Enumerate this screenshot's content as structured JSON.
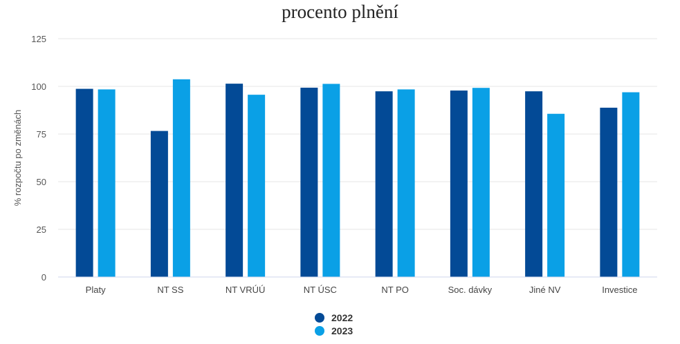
{
  "chart_data": {
    "type": "bar",
    "title": "procento plnění",
    "xlabel": "",
    "ylabel": "% rozpočtu po změnách",
    "ylim": [
      0,
      125
    ],
    "yticks": [
      0,
      25,
      50,
      75,
      100,
      125
    ],
    "grid": true,
    "legend_position": "bottom",
    "categories": [
      "Platy",
      "NT SS",
      "NT VRÚÚ",
      "NT ÚSC",
      "NT PO",
      "Soc. dávky",
      "Jiné NV",
      "Investice"
    ],
    "series": [
      {
        "name": "2022",
        "color": "#034a96",
        "values": [
          98.7,
          76.6,
          101.4,
          99.3,
          97.4,
          97.8,
          97.4,
          88.8
        ]
      },
      {
        "name": "2023",
        "color": "#0aa0e6",
        "values": [
          98.4,
          103.7,
          95.6,
          101.3,
          98.4,
          99.2,
          85.6,
          96.9
        ]
      }
    ]
  }
}
